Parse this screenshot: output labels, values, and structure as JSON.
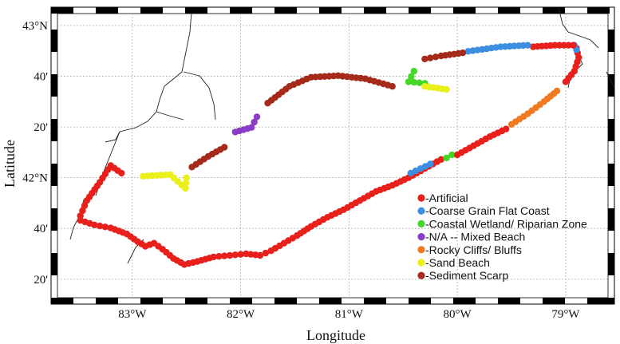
{
  "map": {
    "xlabel": "Longitude",
    "ylabel": "Latitude",
    "x_ticks": [
      {
        "lon": -83,
        "label": "83°W"
      },
      {
        "lon": -82,
        "label": "82°W"
      },
      {
        "lon": -81,
        "label": "81°W"
      },
      {
        "lon": -80,
        "label": "80°W"
      },
      {
        "lon": -79,
        "label": "79°W"
      }
    ],
    "y_ticks": [
      {
        "lat": 43.0,
        "label": "43°N"
      },
      {
        "lat": 42.667,
        "label": "40'"
      },
      {
        "lat": 42.333,
        "label": "20'"
      },
      {
        "lat": 42.0,
        "label": "42°N"
      },
      {
        "lat": 41.667,
        "label": "40'"
      },
      {
        "lat": 41.333,
        "label": "20'"
      }
    ],
    "extent": {
      "lon": [
        -83.75,
        -78.55
      ],
      "lat": [
        41.17,
        43.12
      ]
    },
    "grid": true,
    "frame": "black-white checkered border"
  },
  "legend": {
    "placement": "lower-right inside map",
    "entries": [
      {
        "key": "artificial",
        "label": "-Artificial",
        "color": "#e8201c"
      },
      {
        "key": "coarse",
        "label": "-Coarse Grain Flat Coast",
        "color": "#3b8ee0"
      },
      {
        "key": "wetland",
        "label": "-Coastal Wetland/ Riparian Zone",
        "color": "#46d62a"
      },
      {
        "key": "mixed",
        "label": "-N/A -- Mixed Beach",
        "color": "#8a3cc7"
      },
      {
        "key": "rocky",
        "label": "-Rocky Cliffs/ Bluffs",
        "color": "#f07a22"
      },
      {
        "key": "sand",
        "label": "-Sand Beach",
        "color": "#e9f01a"
      },
      {
        "key": "scarp",
        "label": "-Sediment Scarp",
        "color": "#a52a1a"
      }
    ]
  },
  "chart_data": {
    "type": "scatter",
    "title": "",
    "xlabel": "Longitude",
    "ylabel": "Latitude",
    "xlim": [
      -83.75,
      -78.55
    ],
    "ylim": [
      41.17,
      43.12
    ],
    "grid": true,
    "legend_placement": "bottom-right",
    "series": [
      {
        "name": "-Artificial",
        "color": "#e8201c"
      },
      {
        "name": "-Coarse Grain Flat Coast",
        "color": "#3b8ee0"
      },
      {
        "name": "-Coastal Wetland/ Riparian Zone",
        "color": "#46d62a"
      },
      {
        "name": "-N/A -- Mixed Beach",
        "color": "#8a3cc7"
      },
      {
        "name": "-Rocky Cliffs/ Bluffs",
        "color": "#f07a22"
      },
      {
        "name": "-Sand Beach",
        "color": "#e9f01a"
      },
      {
        "name": "-Sediment Scarp",
        "color": "#a52a1a"
      }
    ],
    "shoreline_segments": [
      {
        "category": "artificial",
        "points": [
          [
            -83.48,
            41.72
          ],
          [
            -83.35,
            41.69
          ],
          [
            -83.2,
            41.67
          ],
          [
            -83.05,
            41.63
          ],
          [
            -82.95,
            41.58
          ],
          [
            -82.88,
            41.55
          ],
          [
            -82.8,
            41.57
          ],
          [
            -82.72,
            41.53
          ],
          [
            -82.62,
            41.47
          ],
          [
            -82.52,
            41.43
          ],
          [
            -82.4,
            41.45
          ],
          [
            -82.25,
            41.48
          ],
          [
            -82.1,
            41.49
          ],
          [
            -81.95,
            41.5
          ],
          [
            -81.82,
            41.49
          ],
          [
            -81.72,
            41.52
          ],
          [
            -81.6,
            41.57
          ],
          [
            -81.48,
            41.62
          ],
          [
            -81.35,
            41.68
          ],
          [
            -81.2,
            41.74
          ],
          [
            -81.05,
            41.79
          ],
          [
            -80.9,
            41.85
          ],
          [
            -80.75,
            41.91
          ],
          [
            -80.6,
            41.95
          ],
          [
            -80.45,
            42.0
          ],
          [
            -80.3,
            42.06
          ],
          [
            -80.15,
            42.12
          ]
        ]
      },
      {
        "category": "coarse",
        "points": [
          [
            -80.43,
            42.03
          ],
          [
            -80.25,
            42.09
          ]
        ]
      },
      {
        "category": "wetland",
        "points": [
          [
            -80.1,
            42.13
          ],
          [
            -80.05,
            42.15
          ]
        ]
      },
      {
        "category": "artificial",
        "points": [
          [
            -80.0,
            42.15
          ],
          [
            -79.85,
            42.21
          ],
          [
            -79.7,
            42.27
          ],
          [
            -79.55,
            42.32
          ]
        ]
      },
      {
        "category": "rocky",
        "points": [
          [
            -79.5,
            42.35
          ],
          [
            -79.35,
            42.42
          ],
          [
            -79.2,
            42.5
          ],
          [
            -79.08,
            42.57
          ]
        ]
      },
      {
        "category": "artificial",
        "points": [
          [
            -79.0,
            42.63
          ],
          [
            -78.92,
            42.7
          ],
          [
            -78.88,
            42.79
          ],
          [
            -78.9,
            42.85
          ]
        ]
      },
      {
        "category": "coarse",
        "points": [
          [
            -78.9,
            42.84
          ],
          [
            -78.92,
            42.87
          ]
        ]
      },
      {
        "category": "artificial",
        "points": [
          [
            -78.93,
            42.87
          ],
          [
            -79.1,
            42.87
          ],
          [
            -79.3,
            42.86
          ]
        ]
      },
      {
        "category": "coarse",
        "points": [
          [
            -79.35,
            42.87
          ],
          [
            -79.6,
            42.86
          ],
          [
            -79.9,
            42.83
          ]
        ]
      },
      {
        "category": "scarp",
        "points": [
          [
            -79.95,
            42.82
          ],
          [
            -80.15,
            42.8
          ],
          [
            -80.3,
            42.78
          ]
        ]
      },
      {
        "category": "wetland",
        "points": [
          [
            -80.4,
            42.7
          ],
          [
            -80.45,
            42.63
          ],
          [
            -80.3,
            42.62
          ]
        ]
      },
      {
        "category": "sand",
        "points": [
          [
            -80.3,
            42.6
          ],
          [
            -80.1,
            42.58
          ]
        ]
      },
      {
        "category": "scarp",
        "points": [
          [
            -80.6,
            42.6
          ],
          [
            -80.85,
            42.65
          ],
          [
            -81.1,
            42.67
          ],
          [
            -81.35,
            42.66
          ],
          [
            -81.55,
            42.6
          ],
          [
            -81.75,
            42.49
          ]
        ]
      },
      {
        "category": "mixed",
        "points": [
          [
            -81.85,
            42.4
          ],
          [
            -81.9,
            42.33
          ],
          [
            -82.05,
            42.3
          ]
        ]
      },
      {
        "category": "scarp",
        "points": [
          [
            -82.15,
            42.2
          ],
          [
            -82.3,
            42.14
          ],
          [
            -82.45,
            42.07
          ]
        ]
      },
      {
        "category": "sand",
        "points": [
          [
            -82.5,
            42.0
          ],
          [
            -82.51,
            41.93
          ],
          [
            -82.65,
            42.02
          ],
          [
            -82.9,
            42.01
          ]
        ]
      },
      {
        "category": "artificial",
        "points": [
          [
            -83.1,
            42.03
          ],
          [
            -83.2,
            42.08
          ],
          [
            -83.3,
            41.97
          ],
          [
            -83.42,
            41.85
          ],
          [
            -83.48,
            41.75
          ]
        ]
      }
    ]
  }
}
